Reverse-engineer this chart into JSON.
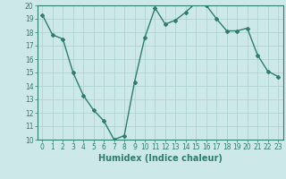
{
  "x": [
    0,
    1,
    2,
    3,
    4,
    5,
    6,
    7,
    8,
    9,
    10,
    11,
    12,
    13,
    14,
    15,
    16,
    17,
    18,
    19,
    20,
    21,
    22,
    23
  ],
  "y": [
    19.3,
    17.8,
    17.5,
    15.0,
    13.3,
    12.2,
    11.4,
    10.0,
    10.3,
    14.3,
    17.6,
    19.8,
    18.6,
    18.9,
    19.5,
    20.2,
    20.0,
    19.0,
    18.1,
    18.1,
    18.3,
    16.3,
    15.1,
    14.7
  ],
  "line_color": "#2e7d6e",
  "bg_color": "#cde8e8",
  "grid_color": "#aacfcf",
  "xlabel": "Humidex (Indice chaleur)",
  "ylim": [
    10,
    20
  ],
  "xlim_min": -0.5,
  "xlim_max": 23.5,
  "yticks": [
    10,
    11,
    12,
    13,
    14,
    15,
    16,
    17,
    18,
    19,
    20
  ],
  "xticks": [
    0,
    1,
    2,
    3,
    4,
    5,
    6,
    7,
    8,
    9,
    10,
    11,
    12,
    13,
    14,
    15,
    16,
    17,
    18,
    19,
    20,
    21,
    22,
    23
  ],
  "tick_fontsize": 5.5,
  "xlabel_fontsize": 7,
  "marker": "D",
  "marker_size": 2.0,
  "linewidth": 1.0
}
